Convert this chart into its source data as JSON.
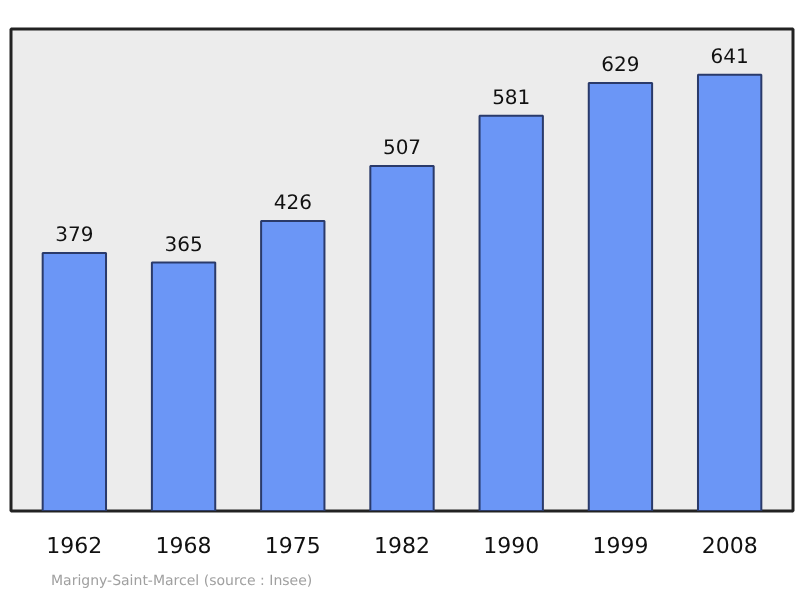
{
  "chart_data": {
    "type": "bar",
    "categories": [
      "1962",
      "1968",
      "1975",
      "1982",
      "1990",
      "1999",
      "2008"
    ],
    "values": [
      379,
      365,
      426,
      507,
      581,
      629,
      641
    ],
    "color": "#6b96f6",
    "data_labels": true,
    "annotations": [
      "Marigny-Saint-Marcel    (source : Insee)"
    ]
  }
}
